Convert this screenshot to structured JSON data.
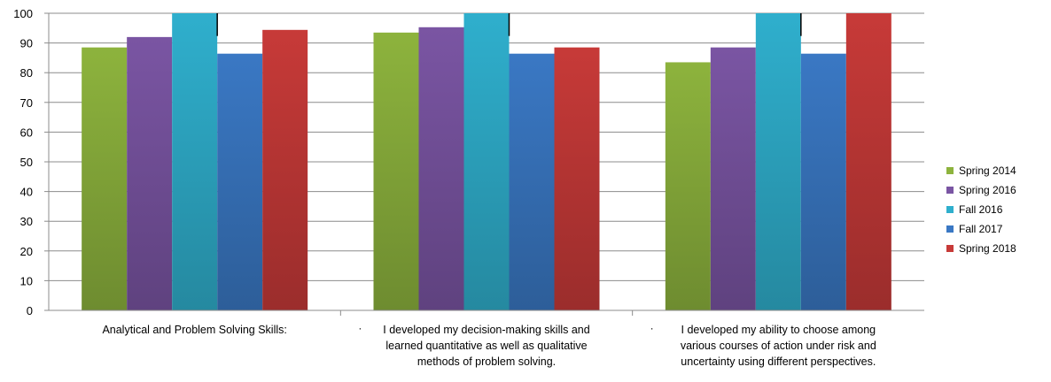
{
  "chart_data": {
    "type": "bar",
    "categories": [
      [
        "Analytical and Problem Solving Skills:"
      ],
      [
        "·",
        "I developed my decision-making skills and",
        "learned quantitative as well as qualitative",
        "methods of problem solving."
      ],
      [
        "·",
        "I developed my ability to choose among",
        "various courses of action under risk and",
        "uncertainty using different perspectives."
      ]
    ],
    "series": [
      {
        "name": "Spring 2014",
        "color": "#8DB33D",
        "values": [
          88.5,
          93.5,
          83.5
        ]
      },
      {
        "name": "Spring 2016",
        "color": "#7A55A3",
        "values": [
          92,
          95.3,
          88.5
        ]
      },
      {
        "name": "Fall 2016",
        "color": "#2FAFCD",
        "values": [
          100,
          100,
          100
        ]
      },
      {
        "name": "Fall 2017",
        "color": "#3A78C4",
        "values": [
          86.4,
          86.4,
          86.4
        ]
      },
      {
        "name": "Spring 2018",
        "color": "#C73A38",
        "values": [
          94.4,
          88.5,
          100
        ]
      }
    ],
    "ylim": [
      0,
      100
    ],
    "yticks": [
      0,
      10,
      20,
      30,
      40,
      50,
      60,
      70,
      80,
      90,
      100
    ],
    "grid": true,
    "legend_position": "right",
    "title": "",
    "xlabel": "",
    "ylabel": ""
  }
}
